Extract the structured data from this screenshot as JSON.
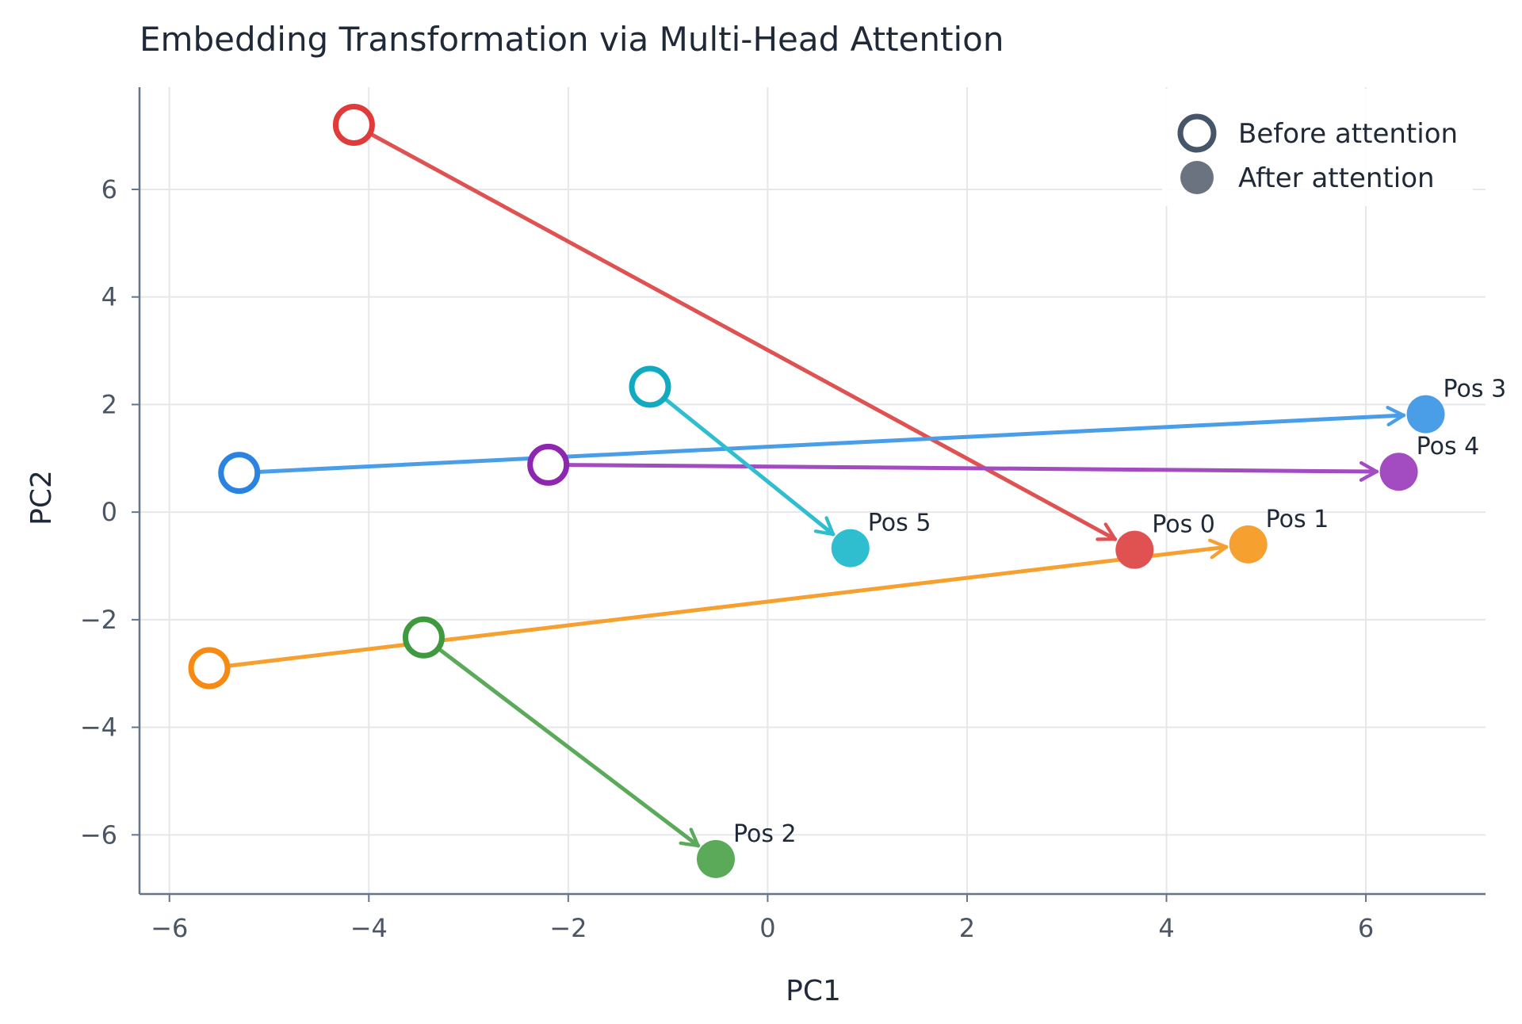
{
  "chart_data": {
    "type": "scatter",
    "title": "Embedding Transformation via Multi-Head Attention",
    "xlabel": "PC1",
    "ylabel": "PC2",
    "xlim": [
      -6.3,
      7.2
    ],
    "ylim": [
      -7.1,
      7.9
    ],
    "xticks": [
      -6,
      -4,
      -2,
      0,
      2,
      4,
      6
    ],
    "yticks": [
      -6,
      -4,
      -2,
      0,
      2,
      4,
      6
    ],
    "grid": true,
    "legend": {
      "placement": "top-right",
      "entries": [
        {
          "label": "Before attention",
          "marker": "hollow",
          "color": "#475569"
        },
        {
          "label": "After attention",
          "marker": "filled",
          "color": "#6b7280"
        }
      ]
    },
    "series": [
      {
        "label": "Pos 0",
        "color": "#e05252",
        "before": [
          -4.15,
          7.2
        ],
        "after": [
          3.68,
          -0.7
        ]
      },
      {
        "label": "Pos 1",
        "color": "#f6a030",
        "before": [
          -5.6,
          -2.9
        ],
        "after": [
          4.82,
          -0.6
        ]
      },
      {
        "label": "Pos 2",
        "color": "#5aaa5a",
        "before": [
          -3.45,
          -2.33
        ],
        "after": [
          -0.52,
          -6.45
        ]
      },
      {
        "label": "Pos 3",
        "color": "#4a9ee8",
        "before": [
          -5.3,
          0.73
        ],
        "after": [
          6.6,
          1.82
        ]
      },
      {
        "label": "Pos 4",
        "color": "#a34bc0",
        "before": [
          -2.2,
          0.88
        ],
        "after": [
          6.33,
          0.75
        ]
      },
      {
        "label": "Pos 5",
        "color": "#2fbdd0",
        "before": [
          -1.18,
          2.33
        ],
        "after": [
          0.83,
          -0.67
        ]
      }
    ],
    "ring_colors": [
      "#e03a3a",
      "#f78a12",
      "#3f9a3f",
      "#2a83e0",
      "#8e27b0",
      "#12aac0"
    ]
  }
}
